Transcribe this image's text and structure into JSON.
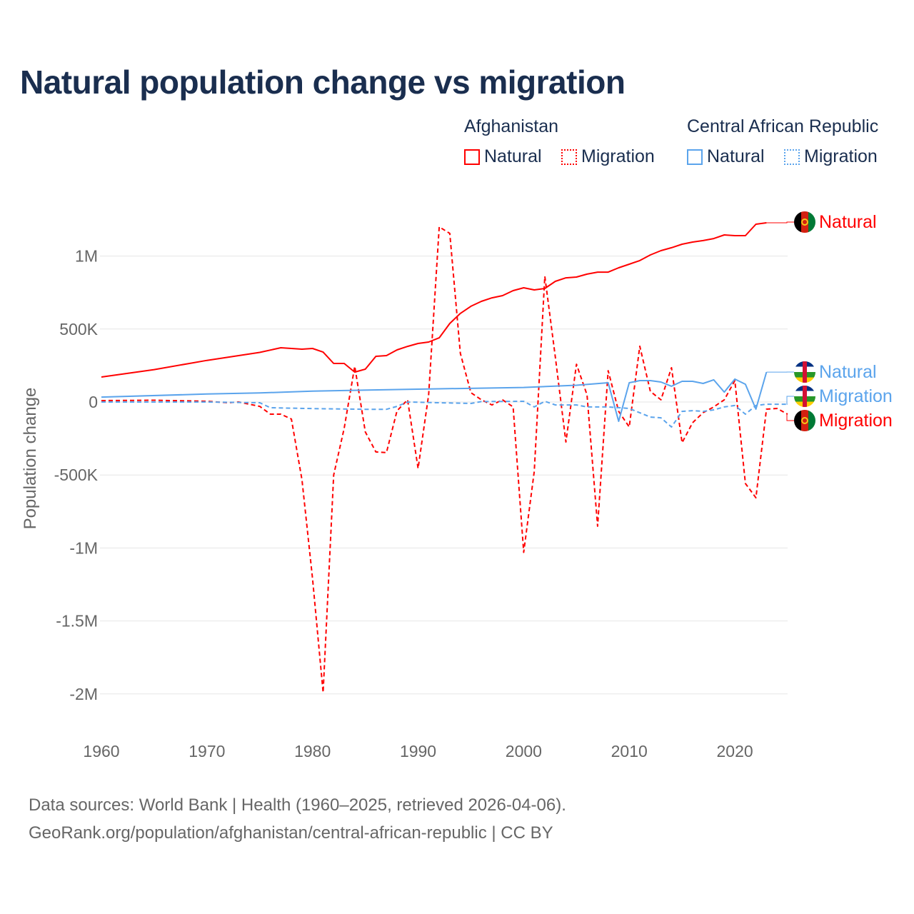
{
  "chart_data": {
    "type": "line",
    "title": "Natural population change vs migration",
    "xlabel": "",
    "ylabel": "Population change",
    "xlim": [
      1960,
      2025
    ],
    "ylim": [
      -2000000,
      1250000
    ],
    "grid": true,
    "x_ticks": [
      1960,
      1970,
      1980,
      1990,
      2000,
      2010,
      2020
    ],
    "x_tick_labels": [
      "1960",
      "1970",
      "1980",
      "1990",
      "2000",
      "2010",
      "2020"
    ],
    "y_ticks": [
      1000000,
      500000,
      0,
      -500000,
      -1000000,
      -1500000,
      -2000000
    ],
    "y_tick_labels": [
      "1M",
      "500K",
      "0",
      "-500K",
      "-1M",
      "-1.5M",
      "-2M"
    ],
    "legend": {
      "placement": "top-right",
      "groups": [
        {
          "name": "Afghanistan",
          "items": [
            "Natural",
            "Migration"
          ]
        },
        {
          "name": "Central African Republic",
          "items": [
            "Natural",
            "Migration"
          ]
        }
      ]
    },
    "series": [
      {
        "name": "Natural",
        "country": "Afghanistan",
        "color": "#ff0000",
        "dash": false,
        "x": [
          1960,
          1965,
          1970,
          1975,
          1977,
          1979,
          1980,
          1981,
          1982,
          1983,
          1984,
          1985,
          1986,
          1987,
          1988,
          1989,
          1990,
          1991,
          1992,
          1993,
          1994,
          1995,
          1996,
          1997,
          1998,
          1999,
          2000,
          2001,
          2002,
          2003,
          2004,
          2005,
          2006,
          2007,
          2008,
          2009,
          2010,
          2011,
          2012,
          2013,
          2014,
          2015,
          2016,
          2017,
          2018,
          2019,
          2020,
          2021,
          2022,
          2023
        ],
        "values": [
          171000,
          222000,
          285000,
          340000,
          372000,
          362000,
          367000,
          342000,
          264000,
          264000,
          205000,
          225000,
          313000,
          318000,
          357000,
          381000,
          401000,
          411000,
          440000,
          538000,
          607000,
          656000,
          690000,
          714000,
          729000,
          763000,
          783000,
          768000,
          778000,
          827000,
          851000,
          856000,
          876000,
          890000,
          890000,
          920000,
          944000,
          969000,
          1008000,
          1037000,
          1057000,
          1081000,
          1096000,
          1106000,
          1120000,
          1145000,
          1140000,
          1140000,
          1218000,
          1228000
        ]
      },
      {
        "name": "Migration",
        "country": "Afghanistan",
        "color": "#ff0000",
        "dash": true,
        "x": [
          1960,
          1965,
          1970,
          1972,
          1973,
          1975,
          1976,
          1977,
          1978,
          1979,
          1980,
          1981,
          1982,
          1983,
          1984,
          1985,
          1986,
          1987,
          1988,
          1989,
          1990,
          1991,
          1992,
          1993,
          1994,
          1995,
          1996,
          1997,
          1998,
          1999,
          2000,
          2001,
          2002,
          2003,
          2004,
          2005,
          2006,
          2007,
          2008,
          2009,
          2010,
          2011,
          2012,
          2013,
          2014,
          2015,
          2016,
          2017,
          2018,
          2019,
          2020,
          2021,
          2022,
          2023,
          2024,
          2025
        ],
        "values": [
          10000,
          12000,
          5000,
          -5000,
          0,
          -30000,
          -83000,
          -83000,
          -117000,
          -533000,
          -1210000,
          -1990000,
          -500000,
          -180000,
          245000,
          -205000,
          -342000,
          -347000,
          -60000,
          15000,
          -455000,
          50000,
          1200000,
          1155000,
          333000,
          64000,
          15000,
          -20000,
          15000,
          -34000,
          -1030000,
          -475000,
          861000,
          308000,
          -274000,
          259000,
          49000,
          -851000,
          215000,
          -64000,
          -171000,
          382000,
          73000,
          15000,
          235000,
          -279000,
          -142000,
          -73000,
          -34000,
          15000,
          147000,
          -558000,
          -656000,
          -49000,
          -44000,
          -83000
        ]
      },
      {
        "name": "Natural",
        "country": "Central African Republic",
        "color": "#5ba4ec",
        "dash": false,
        "x": [
          1960,
          1970,
          1975,
          1980,
          1990,
          2000,
          2005,
          2008,
          2009,
          2010,
          2011,
          2012,
          2013,
          2014,
          2015,
          2016,
          2017,
          2018,
          2019,
          2020,
          2021,
          2022,
          2023
        ],
        "values": [
          34000,
          55000,
          62000,
          75000,
          88000,
          100000,
          115000,
          132000,
          -132000,
          132000,
          147000,
          147000,
          137000,
          108000,
          142000,
          142000,
          127000,
          152000,
          68000,
          157000,
          122000,
          -49000,
          205000
        ]
      },
      {
        "name": "Migration",
        "country": "Central African Republic",
        "color": "#5ba4ec",
        "dash": true,
        "x": [
          1960,
          1970,
          1975,
          1976,
          1980,
          1985,
          1987,
          1988,
          1989,
          1995,
          1996,
          2000,
          2001,
          2002,
          2003,
          2005,
          2006,
          2008,
          2010,
          2012,
          2013,
          2014,
          2015,
          2016,
          2017,
          2018,
          2019,
          2020,
          2021,
          2022,
          2023,
          2024,
          2025
        ],
        "values": [
          0,
          0,
          -5000,
          -39000,
          -45000,
          -50000,
          -50000,
          -30000,
          0,
          -10000,
          3000,
          5000,
          -34000,
          5000,
          -20000,
          -20000,
          -34000,
          -34000,
          -44000,
          -103000,
          -108000,
          -171000,
          -64000,
          -59000,
          -64000,
          -54000,
          -34000,
          -24000,
          -83000,
          -24000,
          -15000,
          -15000,
          -15000
        ]
      }
    ],
    "end_labels": [
      {
        "text": "Natural",
        "country": "Afghanistan",
        "color": "#ff0000"
      },
      {
        "text": "Natural",
        "country": "Central African Republic",
        "color": "#5ba4ec"
      },
      {
        "text": "Migration",
        "country": "Central African Republic",
        "color": "#5ba4ec"
      },
      {
        "text": "Migration",
        "country": "Afghanistan",
        "color": "#ff0000"
      }
    ]
  },
  "footer": {
    "line1": "Data sources: World Bank | Health (1960–2025, retrieved 2026-04-06).",
    "line2": "GeoRank.org/population/afghanistan/central-african-republic | CC BY"
  }
}
